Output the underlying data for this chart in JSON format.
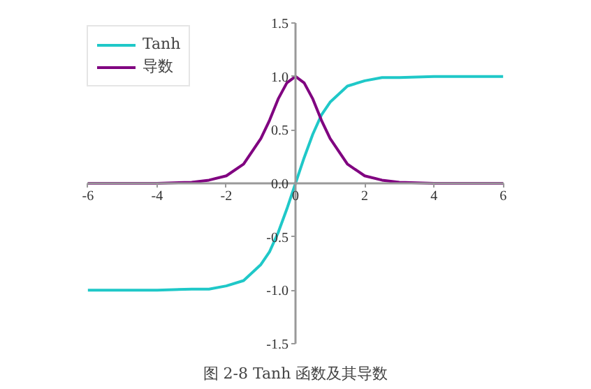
{
  "chart_data": {
    "type": "line",
    "title": "图 2-8 Tanh 函数及其导数",
    "x": [
      -6,
      -5,
      -4,
      -3,
      -2.5,
      -2,
      -1.5,
      -1,
      -0.75,
      -0.5,
      -0.25,
      0,
      0.25,
      0.5,
      0.75,
      1,
      1.5,
      2,
      2.5,
      3,
      4,
      5,
      6
    ],
    "series": [
      {
        "name": "Tanh",
        "color": "#1fc8c8",
        "values": [
          -1,
          -1,
          -1,
          -0.99,
          -0.99,
          -0.96,
          -0.91,
          -0.76,
          -0.64,
          -0.46,
          -0.24,
          0,
          0.24,
          0.46,
          0.64,
          0.76,
          0.91,
          0.96,
          0.99,
          0.99,
          1,
          1,
          1
        ]
      },
      {
        "name": "导数",
        "color": "#800080",
        "values": [
          0,
          0,
          0,
          0.01,
          0.03,
          0.07,
          0.18,
          0.42,
          0.59,
          0.79,
          0.94,
          1,
          0.94,
          0.79,
          0.59,
          0.42,
          0.18,
          0.07,
          0.03,
          0.01,
          0,
          0,
          0
        ]
      }
    ],
    "xlim": [
      -6,
      6
    ],
    "ylim": [
      -1.5,
      1.5
    ],
    "xticks": [
      -6,
      -4,
      -2,
      0,
      2,
      4,
      6
    ],
    "yticks": [
      -1.5,
      {
        "value": -1,
        "label": "-1.0"
      },
      -0.5,
      {
        "value": 0,
        "label": "0.0"
      },
      0.5,
      {
        "value": 1,
        "label": "1.0"
      },
      1.5
    ],
    "grid": false,
    "legend": "top left",
    "marker": "none",
    "line_style": "solid"
  }
}
